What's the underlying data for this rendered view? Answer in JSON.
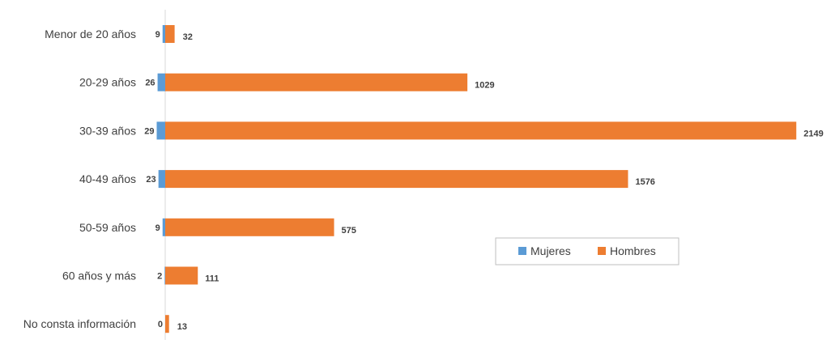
{
  "chart_data": {
    "type": "bar",
    "orientation": "horizontal",
    "stacked": true,
    "categories": [
      "Menor de 20 años",
      "20-29 años",
      "30-39 años",
      "40-49 años",
      "50-59 años",
      "60 años y más",
      "No consta información"
    ],
    "series": [
      {
        "name": "Mujeres",
        "values": [
          9,
          26,
          29,
          23,
          9,
          2,
          0
        ],
        "color": "#5B9BD5"
      },
      {
        "name": "Hombres",
        "values": [
          32,
          1029,
          2149,
          1576,
          575,
          111,
          13
        ],
        "color": "#ED7D31"
      }
    ],
    "title": "",
    "xlabel": "",
    "ylabel": "",
    "grid": false,
    "legend_position": "lower-right inside plot"
  }
}
